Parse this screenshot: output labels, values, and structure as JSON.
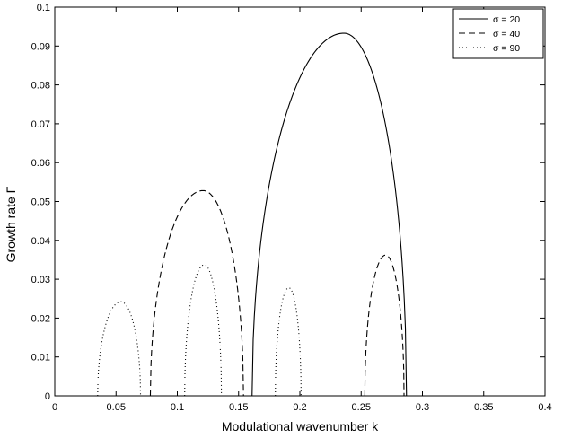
{
  "chart_data": {
    "type": "line",
    "title": "",
    "xlabel": "Modulational wavenumber k",
    "ylabel": "Growth rate Γ",
    "xlim": [
      0,
      0.4
    ],
    "ylim": [
      0,
      0.1
    ],
    "xticks": [
      0,
      0.05,
      0.1,
      0.15,
      0.2,
      0.25,
      0.3,
      0.35,
      0.4
    ],
    "xtick_labels": [
      "0",
      "0.05",
      "0.1",
      "0.15",
      "0.2",
      "0.25",
      "0.3",
      "0.35",
      "0.4"
    ],
    "yticks": [
      0,
      0.01,
      0.02,
      0.03,
      0.04,
      0.05,
      0.06,
      0.07,
      0.08,
      0.09,
      0.1
    ],
    "ytick_labels": [
      "0",
      "0.01",
      "0.02",
      "0.03",
      "0.04",
      "0.05",
      "0.06",
      "0.07",
      "0.08",
      "0.09",
      "0.1"
    ],
    "grid": false,
    "legend": "top-right",
    "series": [
      {
        "name": "σ = 20",
        "style": "solid",
        "color": "#000000",
        "lobes": [
          {
            "k_start": 0.161,
            "k_end": 0.287,
            "peak_k": 0.236,
            "peak": 0.0933
          }
        ]
      },
      {
        "name": "σ = 40",
        "style": "dashed",
        "color": "#000000",
        "lobes": [
          {
            "k_start": 0.078,
            "k_end": 0.154,
            "peak_k": 0.121,
            "peak": 0.0528
          },
          {
            "k_start": 0.253,
            "k_end": 0.285,
            "peak_k": 0.27,
            "peak": 0.0362
          }
        ]
      },
      {
        "name": "σ = 90",
        "style": "dotted",
        "color": "#000000",
        "lobes": [
          {
            "k_start": 0.035,
            "k_end": 0.07,
            "peak_k": 0.054,
            "peak": 0.0242
          },
          {
            "k_start": 0.106,
            "k_end": 0.136,
            "peak_k": 0.122,
            "peak": 0.0337
          },
          {
            "k_start": 0.18,
            "k_end": 0.201,
            "peak_k": 0.191,
            "peak": 0.0278
          }
        ]
      }
    ]
  }
}
